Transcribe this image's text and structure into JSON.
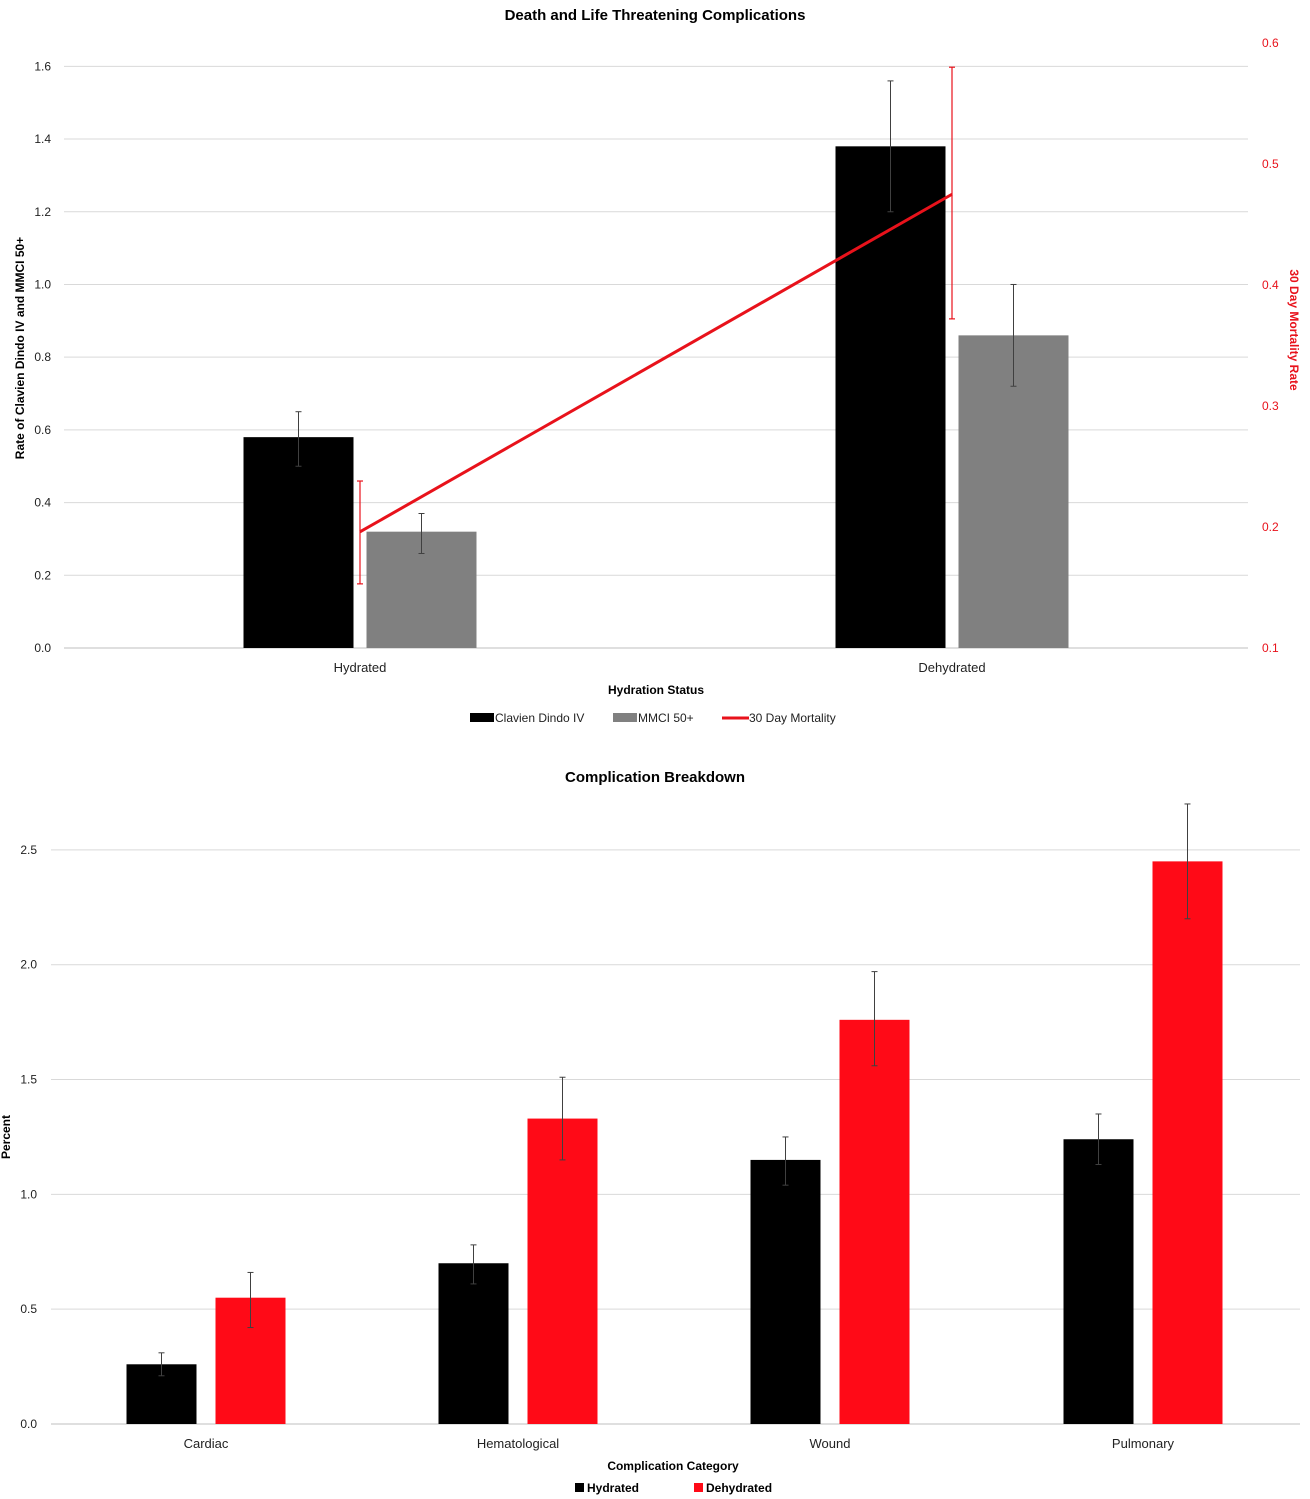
{
  "chart_data": [
    {
      "type": "bar",
      "title": "Death and Life Threatening Complications",
      "xlabel": "Hydration Status",
      "ylabel": "Rate of Clavien Dindo IV and MMCI 50+",
      "y2label": "30 Day Mortality Rate",
      "categories": [
        "Hydrated",
        "Dehydrated"
      ],
      "ylim": [
        0,
        1.7
      ],
      "yticks": [
        "0.0",
        "0.2",
        "0.4",
        "0.6",
        "0.8",
        "1.0",
        "1.2",
        "1.4",
        "1.6"
      ],
      "y2lim": [
        0.1,
        0.6
      ],
      "y2ticks": [
        "0.1",
        "0.2",
        "0.3",
        "0.4",
        "0.5",
        "0.6"
      ],
      "series": [
        {
          "name": "Clavien Dindo IV",
          "kind": "bar",
          "axis": "left",
          "color": "#000000",
          "values": [
            0.58,
            1.38
          ],
          "error_low": [
            0.5,
            1.2
          ],
          "error_high": [
            0.65,
            1.56
          ]
        },
        {
          "name": "MMCI 50+",
          "kind": "bar",
          "axis": "left",
          "color": "#808080",
          "values": [
            0.32,
            0.86
          ],
          "error_low": [
            0.26,
            0.72
          ],
          "error_high": [
            0.37,
            1.0
          ]
        },
        {
          "name": "30 Day Mortality",
          "kind": "line",
          "axis": "right",
          "color": "#e8121b",
          "values": [
            0.196,
            0.475
          ],
          "error_low": [
            0.153,
            0.372
          ],
          "error_high": [
            0.238,
            0.58
          ]
        }
      ],
      "grid": true,
      "legend": "bottom"
    },
    {
      "type": "bar",
      "title": "Complication Breakdown",
      "xlabel": "Complication Category",
      "ylabel": "Percent",
      "categories": [
        "Cardiac",
        "Hematological",
        "Wound",
        "Pulmonary"
      ],
      "ylim": [
        0,
        2.8
      ],
      "yticks": [
        "0.0",
        "0.5",
        "1.0",
        "1.5",
        "2.0",
        "2.5"
      ],
      "series": [
        {
          "name": "Hydrated",
          "color": "#000000",
          "values": [
            0.26,
            0.7,
            1.15,
            1.24
          ],
          "error_low": [
            0.21,
            0.61,
            1.04,
            1.13
          ],
          "error_high": [
            0.31,
            0.78,
            1.25,
            1.35
          ]
        },
        {
          "name": "Dehydrated",
          "color": "#ff0a17",
          "values": [
            0.55,
            1.33,
            1.76,
            2.45
          ],
          "error_low": [
            0.42,
            1.15,
            1.56,
            2.2
          ],
          "error_high": [
            0.66,
            1.51,
            1.97,
            2.7
          ]
        }
      ],
      "grid": true,
      "legend": "bottom"
    }
  ]
}
